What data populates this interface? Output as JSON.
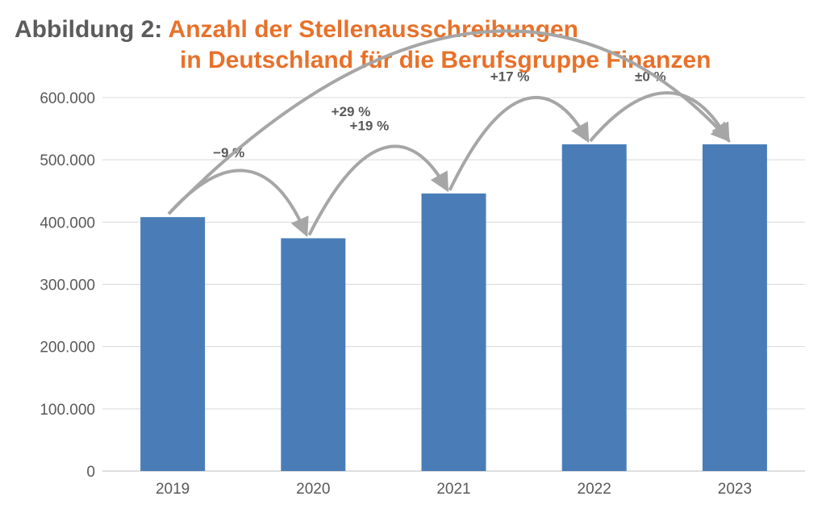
{
  "title": {
    "prefix": "Abbildung 2:",
    "line1": "Anzahl der Stellenausschreibungen",
    "line2": "in Deutschland für die Berufsgruppe Finanzen"
  },
  "colors": {
    "bar": "#4a7db8",
    "title_accent": "#e8712a",
    "title_prefix": "#5b5b5b",
    "arrow": "#a6a6a6",
    "grid": "#d9d9d9"
  },
  "chart_data": {
    "type": "bar",
    "categories": [
      "2019",
      "2020",
      "2021",
      "2022",
      "2023"
    ],
    "values": [
      408000,
      374000,
      446000,
      525000,
      525000
    ],
    "ylim": [
      0,
      600000
    ],
    "yticks": [
      0,
      100000,
      200000,
      300000,
      400000,
      500000,
      600000
    ],
    "ytick_labels": [
      "0",
      "100.000",
      "200.000",
      "300.000",
      "400.000",
      "500.000",
      "600.000"
    ],
    "grid": true,
    "annotations": [
      {
        "from": "2019",
        "to": "2020",
        "label": "−9 %"
      },
      {
        "from": "2020",
        "to": "2021",
        "label": "+19 %"
      },
      {
        "from": "2021",
        "to": "2022",
        "label": "+17 %"
      },
      {
        "from": "2022",
        "to": "2023",
        "label": "±0 %"
      },
      {
        "from": "2019",
        "to": "2023",
        "label": "+29 %"
      }
    ]
  }
}
